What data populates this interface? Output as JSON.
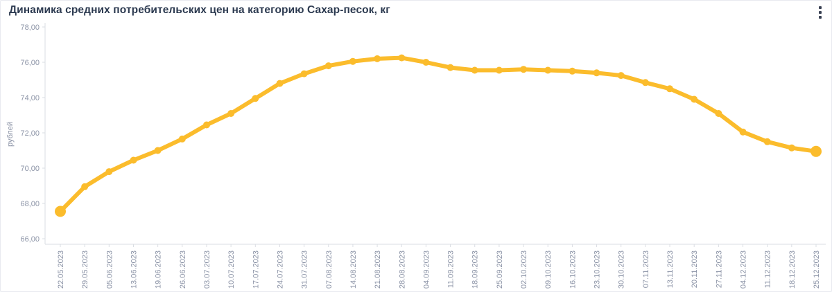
{
  "header": {
    "title": "Динамика средних потребительских цен на категорию Сахар-песок, кг",
    "menu_icon": "kebab-menu"
  },
  "colors": {
    "line": "#FBBC2C",
    "title_text": "#2C3A50",
    "axis_text": "#8B93A6",
    "axis_line": "#DADDE3",
    "card_border": "#E8EAEF",
    "background": "#FFFFFF"
  },
  "chart_data": {
    "type": "line",
    "title": "Динамика средних потребительских цен на категорию Сахар-песок, кг",
    "xlabel": "",
    "ylabel": "рублей",
    "categories": [
      "22.05.2023",
      "29.05.2023",
      "05.06.2023",
      "13.06.2023",
      "19.06.2023",
      "26.06.2023",
      "03.07.2023",
      "10.07.2023",
      "17.07.2023",
      "24.07.2023",
      "31.07.2023",
      "07.08.2023",
      "14.08.2023",
      "21.08.2023",
      "28.08.2023",
      "04.09.2023",
      "11.09.2023",
      "18.09.2023",
      "25.09.2023",
      "02.10.2023",
      "09.10.2023",
      "16.10.2023",
      "23.10.2023",
      "30.10.2023",
      "07.11.2023",
      "13.11.2023",
      "20.11.2023",
      "27.11.2023",
      "04.12.2023",
      "11.12.2023",
      "18.12.2023",
      "25.12.2023"
    ],
    "series": [
      {
        "name": "Сахар-песок, кг",
        "values": [
          67.55,
          68.95,
          69.8,
          70.45,
          71.0,
          71.65,
          72.45,
          73.1,
          73.95,
          74.8,
          75.35,
          75.8,
          76.05,
          76.2,
          76.25,
          76.0,
          75.7,
          75.55,
          75.55,
          75.6,
          75.55,
          75.5,
          75.4,
          75.25,
          74.85,
          74.5,
          73.9,
          73.1,
          72.05,
          71.5,
          71.15,
          70.95
        ]
      }
    ],
    "ylim": [
      66,
      78
    ],
    "yticks": [
      66,
      68,
      70,
      72,
      74,
      76,
      78
    ],
    "ytick_labels": [
      "66,00",
      "68,00",
      "70,00",
      "72,00",
      "74,00",
      "76,00",
      "78,00"
    ],
    "grid": false,
    "legend": false
  }
}
